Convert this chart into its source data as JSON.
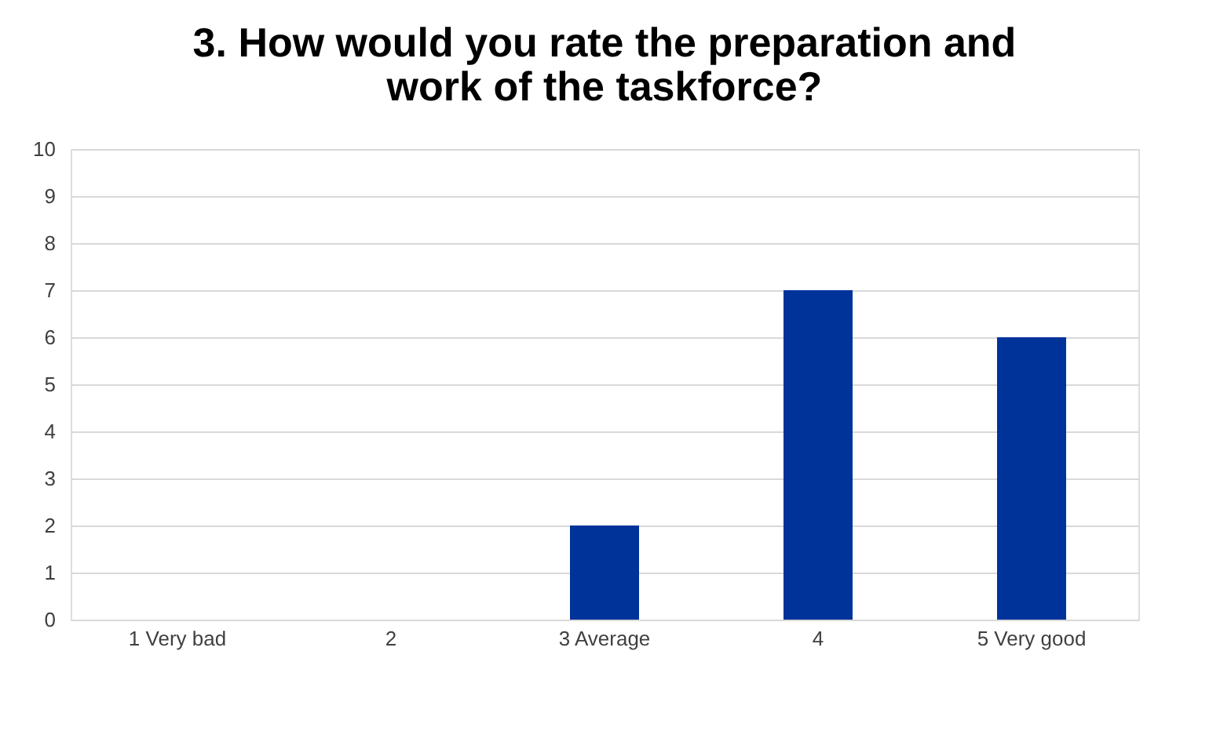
{
  "chart_data": {
    "type": "bar",
    "title": "3. How would you rate the preparation and work of the taskforce?",
    "categories": [
      "1 Very bad",
      "2",
      "3 Average",
      "4",
      "5 Very good"
    ],
    "values": [
      0,
      0,
      2,
      7,
      6
    ],
    "color": "#003399",
    "ylim": [
      0,
      10
    ],
    "yticks": [
      0,
      1,
      2,
      3,
      4,
      5,
      6,
      7,
      8,
      9,
      10
    ],
    "grid": "y"
  }
}
